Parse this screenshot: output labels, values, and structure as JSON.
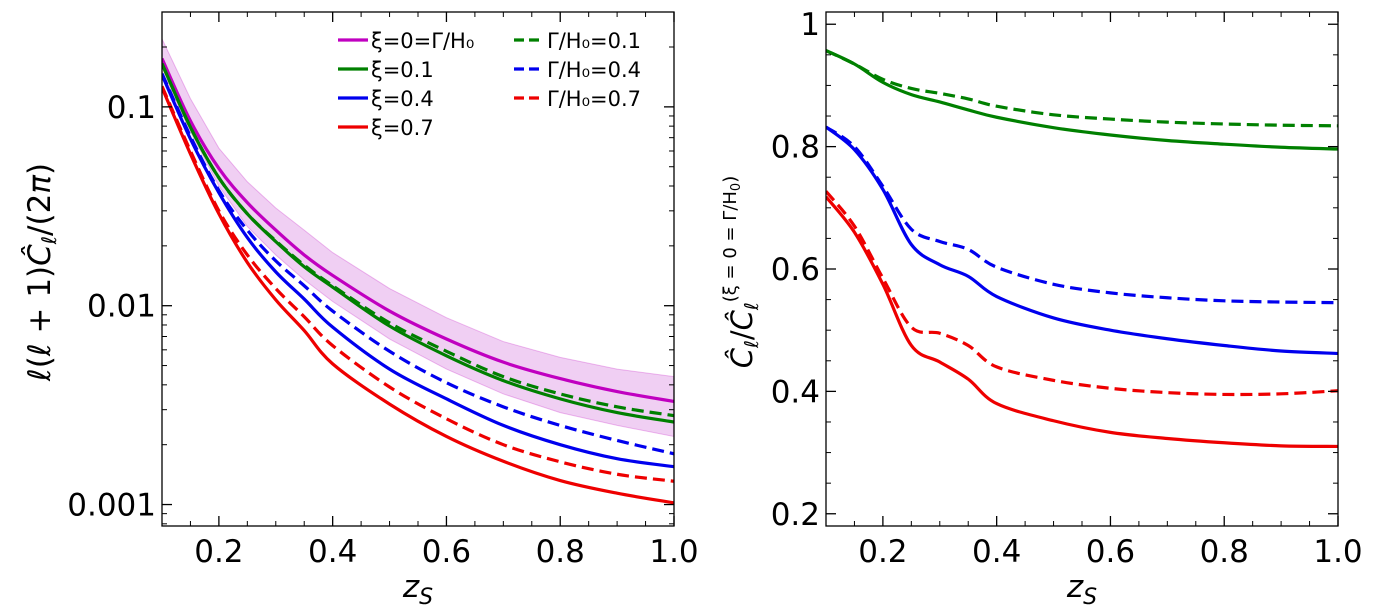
{
  "colors": {
    "magenta": "#c000c0",
    "green": "#008000",
    "blue": "#0000ee",
    "red": "#ee0000",
    "band": "#e3a8ea"
  },
  "chart_data": [
    {
      "type": "line",
      "panel": "left",
      "yscale": "log",
      "xlabel": "z_S",
      "ylabel": "ℓ(ℓ+1)Ĉ_ℓ/(2π)",
      "xlim": [
        0.1,
        1.0
      ],
      "ylim": [
        0.00078,
        0.3
      ],
      "xticks": [
        0.2,
        0.4,
        0.6,
        0.8,
        1.0
      ],
      "xtick_labels": [
        "0.2",
        "0.4",
        "0.6",
        "0.8",
        "1.0"
      ],
      "yticks": [
        0.001,
        0.01,
        0.1
      ],
      "ytick_labels": [
        "0.001",
        "0.01",
        "0.1"
      ],
      "x": [
        0.1,
        0.15,
        0.2,
        0.25,
        0.3,
        0.35,
        0.4,
        0.5,
        0.6,
        0.7,
        0.8,
        0.9,
        1.0
      ],
      "band": {
        "color": "magenta-light",
        "lower": [
          0.15,
          0.075,
          0.04,
          0.025,
          0.018,
          0.0135,
          0.0105,
          0.0068,
          0.0048,
          0.0036,
          0.0029,
          0.0025,
          0.0022
        ],
        "upper": [
          0.22,
          0.11,
          0.062,
          0.042,
          0.031,
          0.024,
          0.0185,
          0.0122,
          0.0087,
          0.0066,
          0.0055,
          0.0048,
          0.0044
        ]
      },
      "series": [
        {
          "name": "ξ=0=Γ/H₀",
          "color": "magenta",
          "dash": "solid",
          "values": [
            0.175,
            0.085,
            0.049,
            0.033,
            0.024,
            0.018,
            0.0142,
            0.0094,
            0.0068,
            0.0052,
            0.0043,
            0.0037,
            0.0033
          ]
        },
        {
          "name": "ξ=0.1",
          "color": "green",
          "dash": "solid",
          "values": [
            0.165,
            0.079,
            0.044,
            0.029,
            0.021,
            0.0157,
            0.0124,
            0.0079,
            0.0056,
            0.0042,
            0.0034,
            0.0029,
            0.0026
          ]
        },
        {
          "name": "ξ=0.4",
          "color": "blue",
          "dash": "solid",
          "values": [
            0.145,
            0.069,
            0.037,
            0.022,
            0.0148,
            0.0108,
            0.0078,
            0.0048,
            0.0034,
            0.0025,
            0.002,
            0.0017,
            0.00155
          ]
        },
        {
          "name": "ξ=0.7",
          "color": "red",
          "dash": "solid",
          "values": [
            0.125,
            0.058,
            0.029,
            0.0165,
            0.0107,
            0.0075,
            0.0051,
            0.0032,
            0.0022,
            0.00165,
            0.00132,
            0.00114,
            0.00102
          ]
        },
        {
          "name": "Γ/H₀=0.1",
          "color": "green",
          "dash": "dashed",
          "values": [
            0.165,
            0.079,
            0.044,
            0.029,
            0.0212,
            0.016,
            0.0126,
            0.0082,
            0.0059,
            0.0044,
            0.0036,
            0.0031,
            0.0028
          ]
        },
        {
          "name": "Γ/H₀=0.4",
          "color": "blue",
          "dash": "dashed",
          "values": [
            0.147,
            0.071,
            0.038,
            0.024,
            0.0168,
            0.0126,
            0.0094,
            0.0059,
            0.0041,
            0.0031,
            0.0025,
            0.0021,
            0.0018
          ]
        },
        {
          "name": "Γ/H₀=0.7",
          "color": "red",
          "dash": "dashed",
          "values": [
            0.127,
            0.06,
            0.03,
            0.018,
            0.0122,
            0.0088,
            0.0063,
            0.0039,
            0.0027,
            0.002,
            0.00164,
            0.00142,
            0.00131
          ]
        }
      ],
      "legend": {
        "position": "top-right",
        "columns": [
          [
            "ξ=0=Γ/H₀",
            "ξ=0.1",
            "ξ=0.4",
            "ξ=0.7"
          ],
          [
            "Γ/H₀=0.1",
            "Γ/H₀=0.4",
            "Γ/H₀=0.7"
          ]
        ]
      }
    },
    {
      "type": "line",
      "panel": "right",
      "yscale": "linear",
      "xlabel": "z_S",
      "ylabel": "Ĉ_ℓ/Ĉ_ℓ^(ξ=0=Γ/H₀)",
      "xlim": [
        0.1,
        1.0
      ],
      "ylim": [
        0.18,
        1.02
      ],
      "xticks": [
        0.2,
        0.4,
        0.6,
        0.8,
        1.0
      ],
      "xtick_labels": [
        "0.2",
        "0.4",
        "0.6",
        "0.8",
        "1.0"
      ],
      "yticks": [
        0.2,
        0.4,
        0.6,
        0.8,
        1.0
      ],
      "ytick_labels": [
        "0.2",
        "0.4",
        "0.6",
        "0.8",
        "1"
      ],
      "x": [
        0.1,
        0.15,
        0.2,
        0.25,
        0.3,
        0.35,
        0.4,
        0.5,
        0.6,
        0.7,
        0.8,
        0.9,
        1.0
      ],
      "series": [
        {
          "name": "ξ=0.1",
          "color": "green",
          "dash": "solid",
          "values": [
            0.957,
            0.935,
            0.905,
            0.885,
            0.873,
            0.86,
            0.848,
            0.831,
            0.819,
            0.81,
            0.804,
            0.799,
            0.796
          ]
        },
        {
          "name": "Γ/H₀=0.1",
          "color": "green",
          "dash": "dashed",
          "values": [
            0.957,
            0.935,
            0.91,
            0.895,
            0.887,
            0.878,
            0.866,
            0.852,
            0.845,
            0.84,
            0.837,
            0.835,
            0.834
          ]
        },
        {
          "name": "ξ=0.4",
          "color": "blue",
          "dash": "solid",
          "values": [
            0.832,
            0.795,
            0.73,
            0.64,
            0.607,
            0.588,
            0.555,
            0.52,
            0.5,
            0.486,
            0.475,
            0.466,
            0.462
          ]
        },
        {
          "name": "Γ/H₀=0.4",
          "color": "blue",
          "dash": "dashed",
          "values": [
            0.832,
            0.8,
            0.735,
            0.665,
            0.645,
            0.632,
            0.603,
            0.575,
            0.561,
            0.553,
            0.548,
            0.546,
            0.545
          ]
        },
        {
          "name": "ξ=0.7",
          "color": "red",
          "dash": "solid",
          "values": [
            0.718,
            0.66,
            0.575,
            0.475,
            0.448,
            0.42,
            0.38,
            0.352,
            0.333,
            0.323,
            0.316,
            0.311,
            0.31
          ]
        },
        {
          "name": "Γ/H₀=0.7",
          "color": "red",
          "dash": "dashed",
          "values": [
            0.727,
            0.67,
            0.585,
            0.505,
            0.495,
            0.475,
            0.44,
            0.418,
            0.405,
            0.398,
            0.395,
            0.396,
            0.401
          ]
        }
      ]
    }
  ]
}
